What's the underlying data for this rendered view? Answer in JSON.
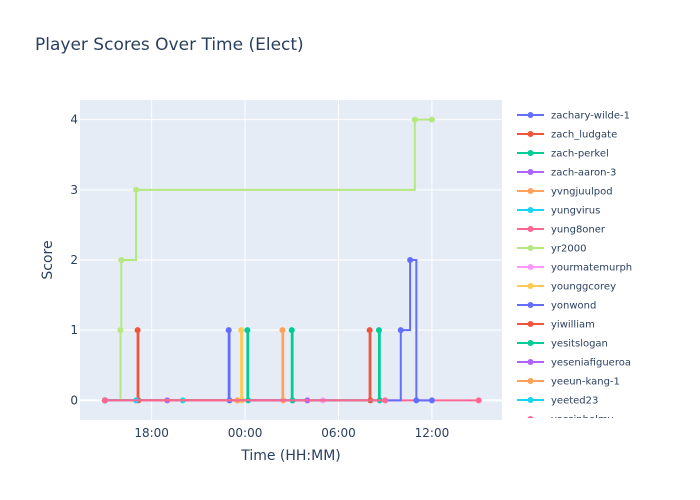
{
  "chart_data": {
    "type": "line",
    "line_shape": "step",
    "title": "Player Scores Over Time (Elect)",
    "xlabel": "Time (HH:MM)",
    "ylabel": "Score",
    "x_ticks": [
      {
        "label": "18:00",
        "value": 18
      },
      {
        "label": "00:00",
        "value": 24
      },
      {
        "label": "06:00",
        "value": 30
      },
      {
        "label": "12:00",
        "value": 36
      }
    ],
    "y_ticks": [
      0,
      1,
      2,
      3,
      4
    ],
    "xlim": [
      13.4,
      40.5
    ],
    "ylim": [
      -0.28,
      4.28
    ],
    "grid": true,
    "legend_position": "right",
    "plot_background": "#e5ecf6",
    "series": [
      {
        "name": "zachary-wilde-1",
        "color": "#636efa",
        "x": [
          15.0,
          22.95,
          23.0
        ],
        "y": [
          0,
          1,
          0
        ]
      },
      {
        "name": "zach_ludgate",
        "color": "#ef553b",
        "x": [
          15.0,
          17.1,
          17.15
        ],
        "y": [
          0,
          1,
          0
        ]
      },
      {
        "name": "zach-perkel",
        "color": "#00cc96",
        "x": [
          15.0,
          24.15,
          24.2
        ],
        "y": [
          0,
          1,
          0
        ]
      },
      {
        "name": "zach-aaron-3",
        "color": "#ab63fa",
        "x": [
          15.0,
          19.0
        ],
        "y": [
          0,
          0
        ]
      },
      {
        "name": "yvngjuulpod",
        "color": "#ffa15a",
        "x": [
          15.0,
          26.4,
          26.45
        ],
        "y": [
          0,
          1,
          0
        ]
      },
      {
        "name": "yungvirus",
        "color": "#19d3f3",
        "x": [
          15.0,
          20.0
        ],
        "y": [
          0,
          0
        ]
      },
      {
        "name": "yung8oner",
        "color": "#ff6692",
        "x": [
          15.0,
          39.0
        ],
        "y": [
          0,
          0
        ]
      },
      {
        "name": "yr2000",
        "color": "#b6e880",
        "x": [
          15.0,
          16.0,
          16.05,
          17.0,
          34.9,
          36.0
        ],
        "y": [
          0,
          1,
          2,
          3,
          4,
          4
        ]
      },
      {
        "name": "yourmatemurph",
        "color": "#ff97ff",
        "x": [
          15.0,
          29.0
        ],
        "y": [
          0,
          0
        ]
      },
      {
        "name": "younggcorey",
        "color": "#fecb52",
        "x": [
          15.0,
          23.75,
          23.8
        ],
        "y": [
          0,
          1,
          0
        ]
      },
      {
        "name": "yonwond",
        "color": "#636efa",
        "x": [
          15.0,
          34.0,
          34.6,
          35.0,
          36.0
        ],
        "y": [
          0,
          1,
          2,
          0,
          0
        ]
      },
      {
        "name": "yiwilliam",
        "color": "#ef553b",
        "x": [
          15.0,
          32.0,
          32.05
        ],
        "y": [
          0,
          1,
          0
        ]
      },
      {
        "name": "yesitslogan",
        "color": "#00cc96",
        "x": [
          15.0,
          27.0,
          27.05,
          32.6,
          32.65
        ],
        "y": [
          0,
          1,
          0,
          1,
          0
        ]
      },
      {
        "name": "yeseniafigueroa",
        "color": "#ab63fa",
        "x": [
          15.0,
          28.0
        ],
        "y": [
          0,
          0
        ]
      },
      {
        "name": "yeeun-kang-1",
        "color": "#ffa15a",
        "x": [
          15.0,
          23.5
        ],
        "y": [
          0,
          0
        ]
      },
      {
        "name": "yeeted23",
        "color": "#19d3f3",
        "x": [
          15.0,
          17.0
        ],
        "y": [
          0,
          0
        ]
      },
      {
        "name": "yassinhelmy",
        "color": "#ff6692",
        "x": [
          15.0,
          33.0
        ],
        "y": [
          0,
          0
        ]
      }
    ]
  }
}
